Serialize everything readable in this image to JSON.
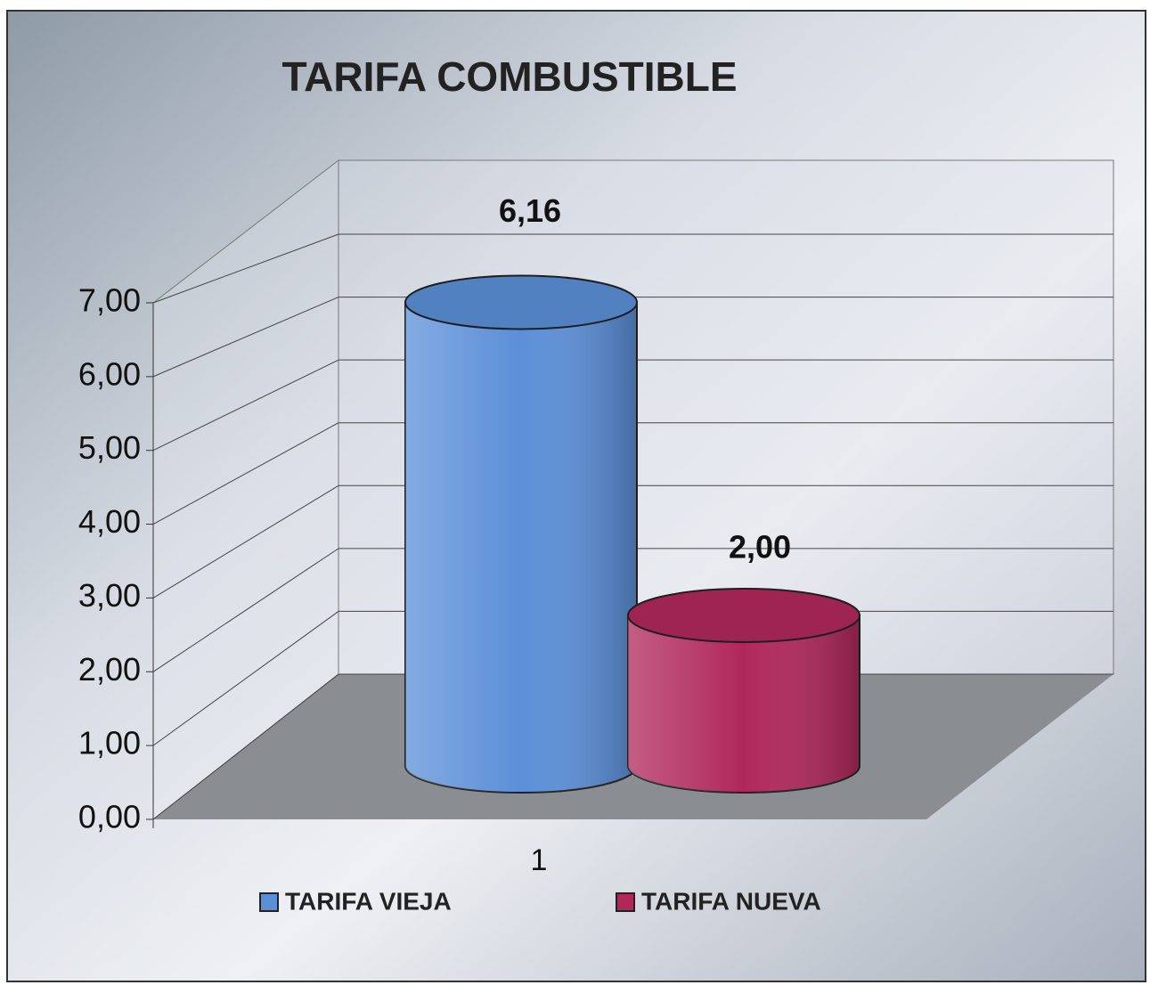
{
  "chart_data": {
    "type": "bar3d",
    "title": "TARIFA COMBUSTIBLE",
    "categories": [
      "1"
    ],
    "series": [
      {
        "name": "TARIFA VIEJA",
        "color": "#5b8fd8",
        "values": [
          6.16
        ],
        "value_labels": [
          "6,16"
        ]
      },
      {
        "name": "TARIFA NUEVA",
        "color": "#b0285a",
        "values": [
          2.0
        ],
        "value_labels": [
          "2,00"
        ]
      }
    ],
    "ylim": [
      0,
      7
    ],
    "yticks": [
      {
        "value": 0,
        "label": "0,00"
      },
      {
        "value": 1,
        "label": "1,00"
      },
      {
        "value": 2,
        "label": "2,00"
      },
      {
        "value": 3,
        "label": "3,00"
      },
      {
        "value": 4,
        "label": "4,00"
      },
      {
        "value": 5,
        "label": "5,00"
      },
      {
        "value": 6,
        "label": "6,00"
      },
      {
        "value": 7,
        "label": "7,00"
      }
    ],
    "grid": true,
    "legend": "bottom"
  }
}
